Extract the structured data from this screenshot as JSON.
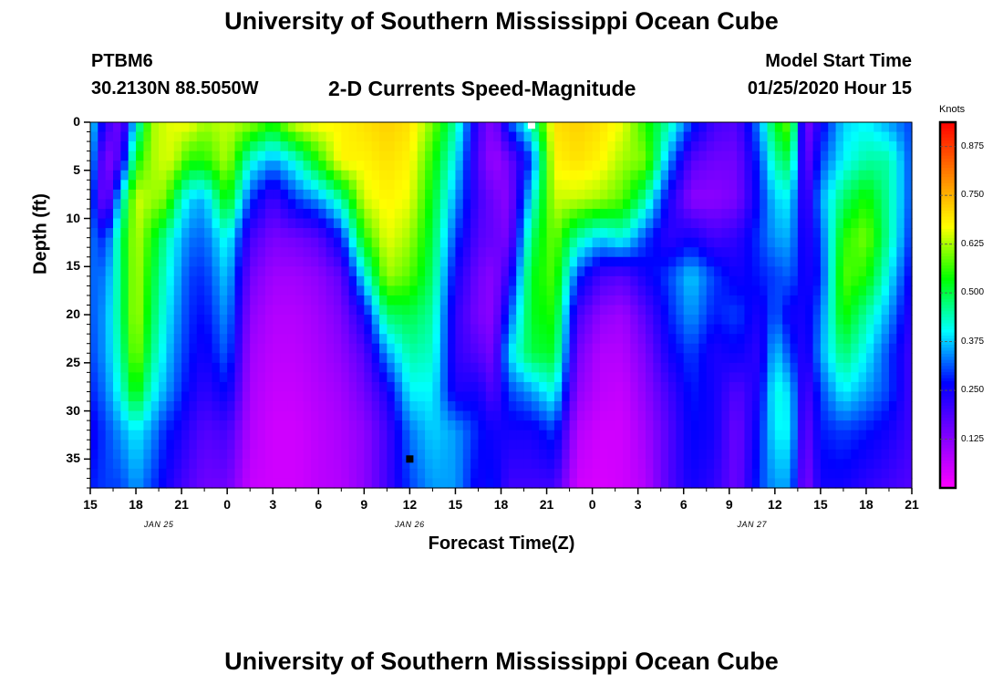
{
  "page": {
    "title_top": "University of Southern Mississippi Ocean Cube",
    "title_bottom": "University of Southern Mississippi Ocean Cube",
    "station_id": "PTBM6",
    "station_coords": "30.2130N 88.5050W",
    "plot_name": "2-D Currents Speed-Magnitude",
    "model_label": "Model Start Time",
    "model_time": "01/25/2020 Hour 15"
  },
  "chart_data": {
    "type": "heatmap",
    "title": "2-D Currents Speed-Magnitude",
    "xlabel": "Forecast Time(Z)",
    "ylabel": "Depth (ft)",
    "colorbar_label": "Knots",
    "x_tick_labels": [
      "15",
      "18",
      "21",
      "0",
      "3",
      "6",
      "9",
      "12",
      "15",
      "18",
      "21",
      "0",
      "3",
      "6",
      "9",
      "12",
      "15",
      "18",
      "21"
    ],
    "date_labels": [
      {
        "label": "JAN  25",
        "tick_index": 1.5
      },
      {
        "label": "JAN  26",
        "tick_index": 7
      },
      {
        "label": "JAN  27",
        "tick_index": 14.5
      }
    ],
    "x_range_hours": [
      0,
      54
    ],
    "ylim": [
      0,
      38
    ],
    "y_ticks": [
      0,
      5,
      10,
      15,
      20,
      25,
      30,
      35
    ],
    "colorbar_ticks": [
      "0.875",
      "0.750",
      "0.625",
      "0.500",
      "0.375",
      "0.250",
      "0.125"
    ],
    "colorbar_tick_values": [
      0.875,
      0.75,
      0.625,
      0.5,
      0.375,
      0.25,
      0.125
    ],
    "value_range": [
      0,
      0.9375
    ],
    "colormap": [
      "#ff00ff",
      "#7f00ff",
      "#0000ff",
      "#00ffff",
      "#00ff00",
      "#ffff00",
      "#ff8000",
      "#ff0000"
    ],
    "profile_hours": [
      0,
      1,
      2,
      3,
      4,
      5,
      5.5,
      6.5,
      7.5,
      9,
      10.5,
      12,
      13.5,
      15,
      16.5,
      18,
      19.5,
      21,
      22.5,
      24,
      25.5,
      26.5,
      27.5,
      29,
      30.5,
      32,
      33.5,
      35,
      36.5,
      38,
      39.5,
      41,
      42.5,
      44,
      45,
      46,
      47,
      48,
      49.5,
      51,
      52.5,
      54
    ],
    "profile_depths": [
      0,
      4,
      8,
      12,
      16,
      20,
      24,
      28,
      32,
      38
    ],
    "speed_profiles": [
      [
        0.4,
        0.38,
        0.33,
        0.33,
        0.32,
        0.31,
        0.3,
        0.28,
        0.25,
        0.28
      ],
      [
        0.22,
        0.12,
        0.12,
        0.28,
        0.33,
        0.35,
        0.35,
        0.33,
        0.3,
        0.3
      ],
      [
        0.14,
        0.2,
        0.4,
        0.48,
        0.47,
        0.47,
        0.45,
        0.42,
        0.35,
        0.3
      ],
      [
        0.4,
        0.53,
        0.65,
        0.64,
        0.64,
        0.64,
        0.62,
        0.55,
        0.4,
        0.35
      ],
      [
        0.62,
        0.62,
        0.62,
        0.55,
        0.52,
        0.5,
        0.47,
        0.42,
        0.35,
        0.3
      ],
      [
        0.65,
        0.65,
        0.6,
        0.45,
        0.42,
        0.4,
        0.38,
        0.35,
        0.28,
        0.25
      ],
      [
        0.66,
        0.64,
        0.5,
        0.4,
        0.38,
        0.36,
        0.34,
        0.32,
        0.27,
        0.22
      ],
      [
        0.67,
        0.55,
        0.38,
        0.33,
        0.3,
        0.29,
        0.28,
        0.26,
        0.22,
        0.18
      ],
      [
        0.62,
        0.55,
        0.36,
        0.32,
        0.29,
        0.27,
        0.25,
        0.22,
        0.18,
        0.15
      ],
      [
        0.64,
        0.63,
        0.55,
        0.42,
        0.38,
        0.35,
        0.32,
        0.27,
        0.2,
        0.15
      ],
      [
        0.62,
        0.42,
        0.3,
        0.2,
        0.15,
        0.12,
        0.1,
        0.09,
        0.08,
        0.06
      ],
      [
        0.55,
        0.35,
        0.2,
        0.14,
        0.1,
        0.08,
        0.07,
        0.06,
        0.05,
        0.05
      ],
      [
        0.66,
        0.42,
        0.3,
        0.15,
        0.1,
        0.08,
        0.07,
        0.06,
        0.05,
        0.05
      ],
      [
        0.68,
        0.55,
        0.35,
        0.18,
        0.12,
        0.1,
        0.09,
        0.08,
        0.07,
        0.07
      ],
      [
        0.68,
        0.68,
        0.45,
        0.28,
        0.17,
        0.14,
        0.12,
        0.1,
        0.09,
        0.08
      ],
      [
        0.7,
        0.68,
        0.65,
        0.55,
        0.4,
        0.25,
        0.18,
        0.15,
        0.12,
        0.12
      ],
      [
        0.72,
        0.7,
        0.68,
        0.66,
        0.62,
        0.48,
        0.35,
        0.24,
        0.2,
        0.2
      ],
      [
        0.7,
        0.68,
        0.66,
        0.62,
        0.58,
        0.5,
        0.45,
        0.4,
        0.33,
        0.3
      ],
      [
        0.6,
        0.55,
        0.52,
        0.5,
        0.48,
        0.45,
        0.43,
        0.4,
        0.38,
        0.35
      ],
      [
        0.45,
        0.4,
        0.35,
        0.3,
        0.25,
        0.22,
        0.22,
        0.24,
        0.35,
        0.35
      ],
      [
        0.2,
        0.18,
        0.2,
        0.18,
        0.15,
        0.14,
        0.18,
        0.25,
        0.28,
        0.25
      ],
      [
        0.12,
        0.1,
        0.15,
        0.16,
        0.12,
        0.12,
        0.14,
        0.18,
        0.25,
        0.28
      ],
      [
        0.3,
        0.15,
        0.12,
        0.14,
        0.22,
        0.3,
        0.38,
        0.3,
        0.25,
        0.2
      ],
      [
        0.45,
        0.3,
        0.4,
        0.48,
        0.52,
        0.52,
        0.5,
        0.35,
        0.25,
        0.2
      ],
      [
        0.7,
        0.68,
        0.64,
        0.6,
        0.58,
        0.55,
        0.52,
        0.42,
        0.3,
        0.2
      ],
      [
        0.72,
        0.7,
        0.64,
        0.45,
        0.3,
        0.2,
        0.15,
        0.12,
        0.08,
        0.05
      ],
      [
        0.7,
        0.68,
        0.62,
        0.38,
        0.2,
        0.12,
        0.08,
        0.07,
        0.05,
        0.04
      ],
      [
        0.66,
        0.62,
        0.58,
        0.42,
        0.18,
        0.1,
        0.08,
        0.06,
        0.05,
        0.05
      ],
      [
        0.55,
        0.6,
        0.45,
        0.3,
        0.25,
        0.18,
        0.14,
        0.12,
        0.1,
        0.08
      ],
      [
        0.45,
        0.35,
        0.25,
        0.22,
        0.3,
        0.28,
        0.25,
        0.2,
        0.18,
        0.18
      ],
      [
        0.3,
        0.18,
        0.12,
        0.25,
        0.38,
        0.35,
        0.3,
        0.28,
        0.27,
        0.25
      ],
      [
        0.2,
        0.15,
        0.12,
        0.2,
        0.3,
        0.28,
        0.24,
        0.25,
        0.25,
        0.22
      ],
      [
        0.18,
        0.15,
        0.14,
        0.22,
        0.25,
        0.3,
        0.26,
        0.18,
        0.15,
        0.15
      ],
      [
        0.35,
        0.3,
        0.28,
        0.3,
        0.28,
        0.24,
        0.22,
        0.25,
        0.28,
        0.3
      ],
      [
        0.52,
        0.45,
        0.38,
        0.35,
        0.3,
        0.32,
        0.38,
        0.42,
        0.4,
        0.35
      ],
      [
        0.6,
        0.5,
        0.4,
        0.36,
        0.32,
        0.25,
        0.3,
        0.38,
        0.4,
        0.35
      ],
      [
        0.12,
        0.14,
        0.18,
        0.22,
        0.24,
        0.25,
        0.22,
        0.18,
        0.15,
        0.12
      ],
      [
        0.25,
        0.3,
        0.35,
        0.3,
        0.28,
        0.32,
        0.35,
        0.3,
        0.28,
        0.25
      ],
      [
        0.38,
        0.4,
        0.48,
        0.55,
        0.58,
        0.55,
        0.48,
        0.4,
        0.3,
        0.25
      ],
      [
        0.4,
        0.45,
        0.55,
        0.6,
        0.55,
        0.45,
        0.4,
        0.35,
        0.28,
        0.22
      ],
      [
        0.35,
        0.45,
        0.45,
        0.45,
        0.4,
        0.35,
        0.3,
        0.3,
        0.25,
        0.2
      ],
      [
        0.3,
        0.3,
        0.3,
        0.28,
        0.25,
        0.22,
        0.2,
        0.2,
        0.2,
        0.18
      ]
    ],
    "markers": [
      {
        "hour": 29,
        "depth": 0.3,
        "color": "#ffffff"
      },
      {
        "hour": 21,
        "depth": 35,
        "color": "#000000"
      }
    ]
  }
}
